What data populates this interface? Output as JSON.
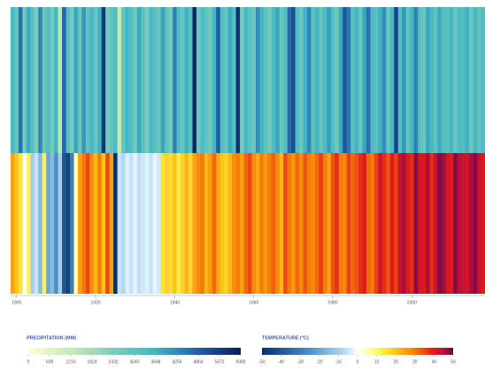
{
  "chart_data": {
    "type": "stripes",
    "x": [
      1899,
      1900,
      1901,
      1902,
      1903,
      1904,
      1905,
      1906,
      1907,
      1908,
      1909,
      1910,
      1911,
      1912,
      1913,
      1914,
      1915,
      1916,
      1917,
      1918,
      1919,
      1920,
      1921,
      1922,
      1923,
      1924,
      1925,
      1926,
      1927,
      1928,
      1929,
      1930,
      1931,
      1932,
      1933,
      1934,
      1935,
      1936,
      1937,
      1938,
      1939,
      1940,
      1941,
      1942,
      1943,
      1944,
      1945,
      1946,
      1947,
      1948,
      1949,
      1950,
      1951,
      1952,
      1953,
      1954,
      1955,
      1956,
      1957,
      1958,
      1959,
      1960,
      1961,
      1962,
      1963,
      1964,
      1965,
      1966,
      1967,
      1968,
      1969,
      1970,
      1971,
      1972,
      1973,
      1974,
      1975,
      1976,
      1977,
      1978,
      1979,
      1980,
      1981,
      1982,
      1983,
      1984,
      1985,
      1986,
      1987,
      1988,
      1989,
      1990,
      1991,
      1992,
      1993,
      1994,
      1995,
      1996,
      1997,
      1998,
      1999,
      2000,
      2001,
      2002,
      2003,
      2004,
      2005,
      2006,
      2007,
      2008,
      2009,
      2010,
      2011,
      2012,
      2013,
      2014,
      2015,
      2016,
      2017,
      2018
    ],
    "xlim": [
      1898.5,
      2018.5
    ],
    "xticks": [
      1900,
      1920,
      1940,
      1960,
      1980,
      2000
    ],
    "series": [
      {
        "name": "PRECIPITATION (MM)",
        "values": [
          3400,
          2900,
          4600,
          2600,
          3800,
          3100,
          2500,
          4300,
          2800,
          3300,
          2700,
          3600,
          1400,
          4800,
          3200,
          2600,
          3900,
          2900,
          4100,
          3000,
          3500,
          2800,
          3700,
          5600,
          2600,
          3000,
          3400,
          1200,
          2900,
          3600,
          3300,
          2700,
          3800,
          3100,
          2500,
          3500,
          3200,
          2800,
          3900,
          3000,
          2600,
          4400,
          3300,
          2900,
          3700,
          3100,
          5900,
          2800,
          3400,
          3000,
          2700,
          3600,
          4900,
          3200,
          2900,
          3800,
          3300,
          5700,
          2600,
          3500,
          3100,
          2800,
          4200,
          3600,
          3000,
          2700,
          3400,
          3900,
          2900,
          3200,
          4700,
          5200,
          3300,
          2800,
          3700,
          4300,
          3100,
          3600,
          2900,
          3400,
          4000,
          3300,
          2700,
          3800,
          5000,
          4500,
          3200,
          3600,
          2800,
          3900,
          4600,
          3400,
          3100,
          3700,
          4200,
          2900,
          3500,
          5400,
          3300,
          4100,
          3000,
          3600,
          4400,
          3200,
          2800,
          3900,
          3500,
          3000,
          3800,
          3300,
          3100,
          3600,
          2900,
          3400,
          3200,
          3700,
          2800,
          3500,
          3000,
          3300
        ],
        "colormap": [
          [
            0,
            "#ffffd9"
          ],
          [
            1216,
            "#c7e9b4"
          ],
          [
            2432,
            "#7fcdbb"
          ],
          [
            3648,
            "#41b6c4"
          ],
          [
            4864,
            "#225ea8"
          ],
          [
            6080,
            "#081d58"
          ]
        ],
        "clim": [
          0,
          6080
        ],
        "ticks": [
          0,
          608,
          1216,
          1824,
          2432,
          3040,
          3648,
          4256,
          4864,
          5472,
          6080
        ]
      },
      {
        "name": "TEMPERATURE (°C)",
        "values": [
          25,
          20,
          15,
          0,
          12,
          -10,
          -5,
          -15,
          12,
          -20,
          -15,
          -25,
          -10,
          -40,
          -45,
          -30,
          5,
          25,
          30,
          35,
          28,
          22,
          30,
          20,
          35,
          25,
          -50,
          -5,
          -8,
          -3,
          -5,
          -2,
          -6,
          -4,
          -3,
          -5,
          -2,
          -4,
          15,
          18,
          16,
          20,
          14,
          18,
          22,
          17,
          25,
          28,
          30,
          22,
          26,
          32,
          24,
          20,
          18,
          22,
          28,
          30,
          25,
          32,
          35,
          28,
          24,
          30,
          26,
          30,
          33,
          28,
          22,
          35,
          30,
          26,
          32,
          28,
          34,
          30,
          28,
          32,
          36,
          30,
          25,
          34,
          38,
          30,
          28,
          36,
          32,
          34,
          38,
          40,
          32,
          30,
          36,
          42,
          38,
          34,
          40,
          36,
          44,
          46,
          40,
          38,
          48,
          42,
          40,
          46,
          38,
          44,
          48,
          47,
          42,
          40,
          48,
          45,
          44,
          42,
          46,
          48,
          44,
          40
        ],
        "colormap": [
          [
            -50,
            "#08306b"
          ],
          [
            -25,
            "#4a90c8"
          ],
          [
            -5,
            "#c6e4f5"
          ],
          [
            0,
            "#ffffff"
          ],
          [
            10,
            "#ffff66"
          ],
          [
            20,
            "#fdc51a"
          ],
          [
            30,
            "#f57c0a"
          ],
          [
            40,
            "#e01a1a"
          ],
          [
            45,
            "#c0103a"
          ],
          [
            50,
            "#5a0a4a"
          ]
        ],
        "clim": [
          -50,
          50
        ],
        "ticks": [
          -50,
          -40,
          -30,
          -20,
          -10,
          0,
          10,
          20,
          30,
          40,
          50
        ]
      }
    ]
  }
}
